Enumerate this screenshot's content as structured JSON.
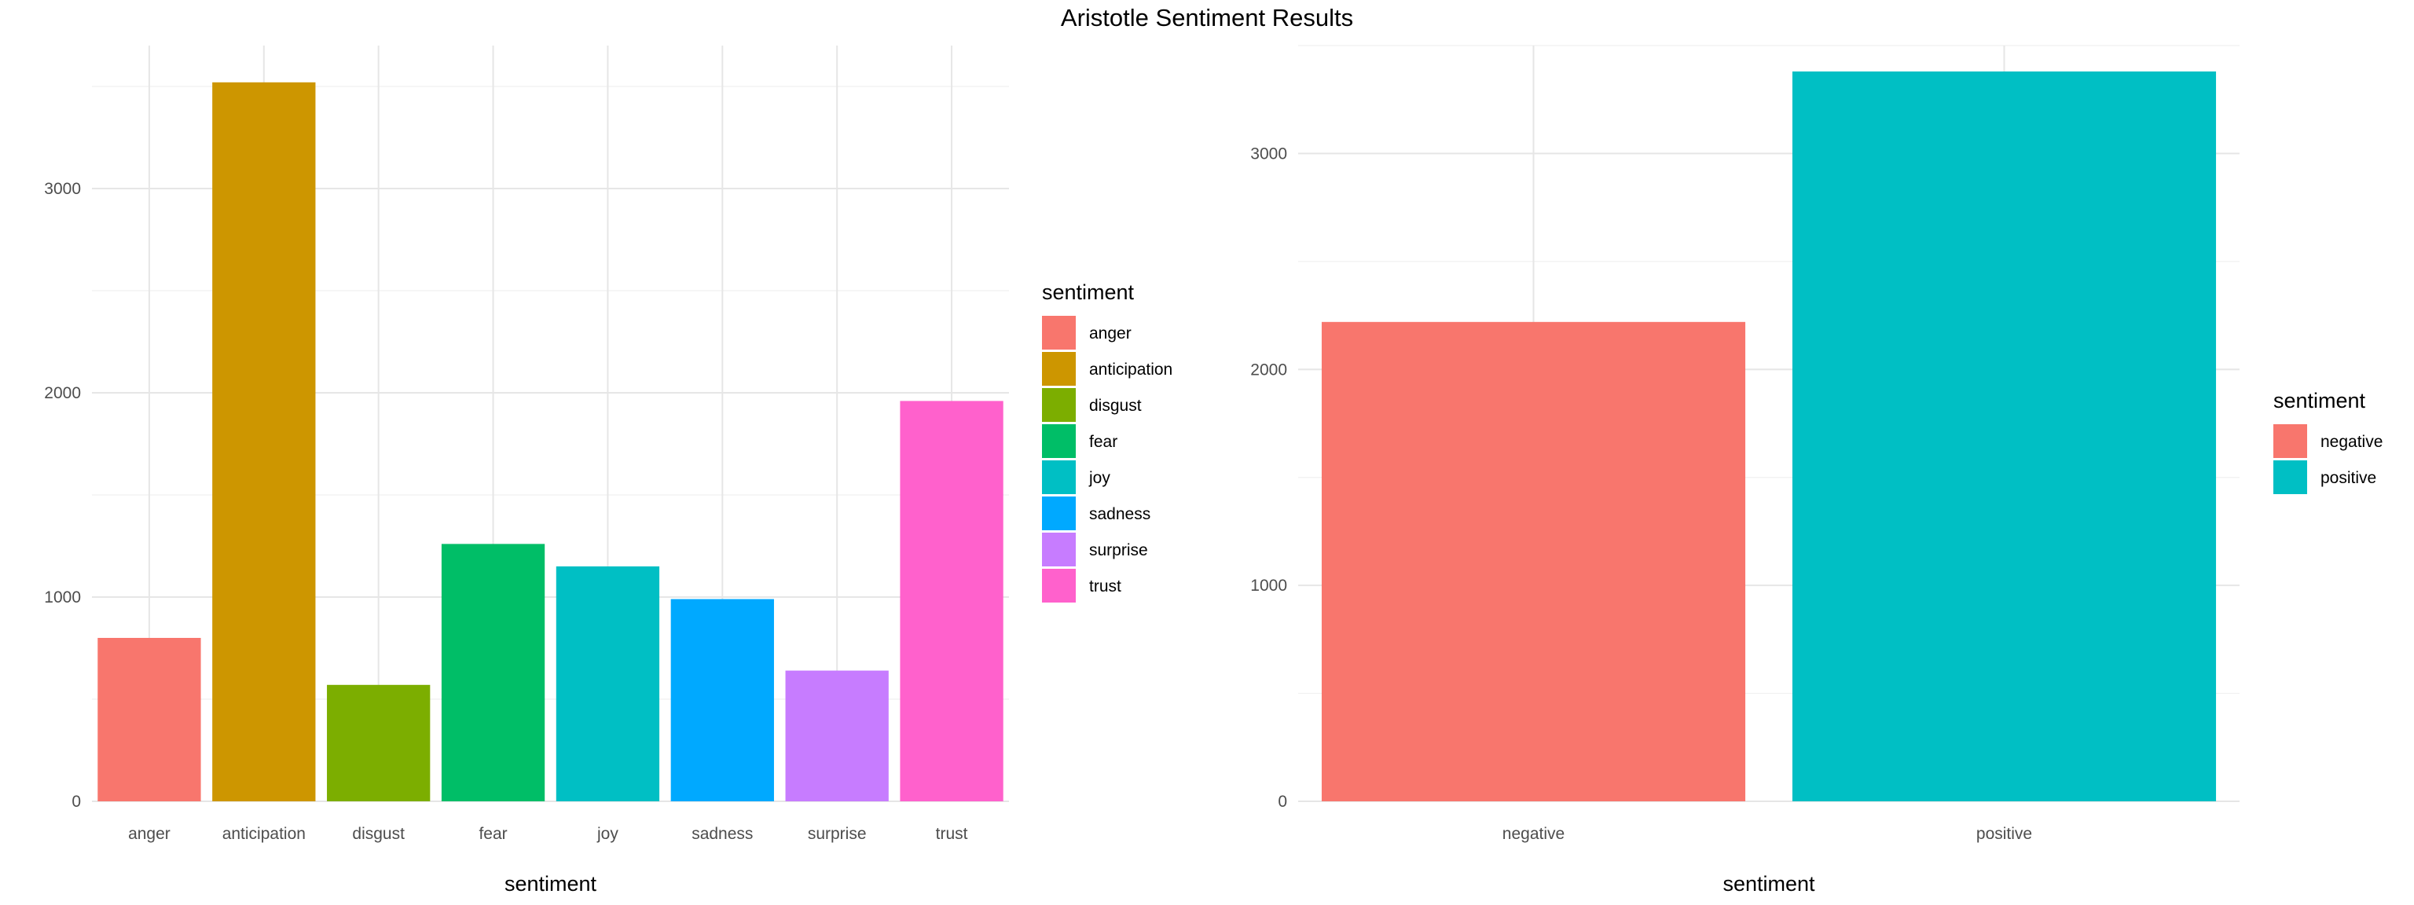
{
  "title": "Aristotle Sentiment Results",
  "chart_data": [
    {
      "type": "bar",
      "categories": [
        "anger",
        "anticipation",
        "disgust",
        "fear",
        "joy",
        "sadness",
        "surprise",
        "trust"
      ],
      "values": [
        800,
        3520,
        570,
        1260,
        1150,
        990,
        640,
        1960
      ],
      "colors": [
        "#F8766D",
        "#CD9600",
        "#7CAE00",
        "#00BE67",
        "#00BFC4",
        "#00A9FF",
        "#C77CFF",
        "#FF61CC"
      ],
      "xlabel": "sentiment",
      "ylabel": "",
      "ylim": [
        0,
        3700
      ],
      "yticks": [
        0,
        1000,
        2000,
        3000
      ],
      "grid": true,
      "legend": {
        "title": "sentiment",
        "placement": "right"
      }
    },
    {
      "type": "bar",
      "categories": [
        "negative",
        "positive"
      ],
      "values": [
        2220,
        3380
      ],
      "colors": [
        "#F8766D",
        "#00BFC4"
      ],
      "xlabel": "sentiment",
      "ylabel": "",
      "ylim": [
        0,
        3500
      ],
      "yticks": [
        0,
        1000,
        2000,
        3000
      ],
      "grid": true,
      "legend": {
        "title": "sentiment",
        "placement": "right"
      }
    }
  ]
}
